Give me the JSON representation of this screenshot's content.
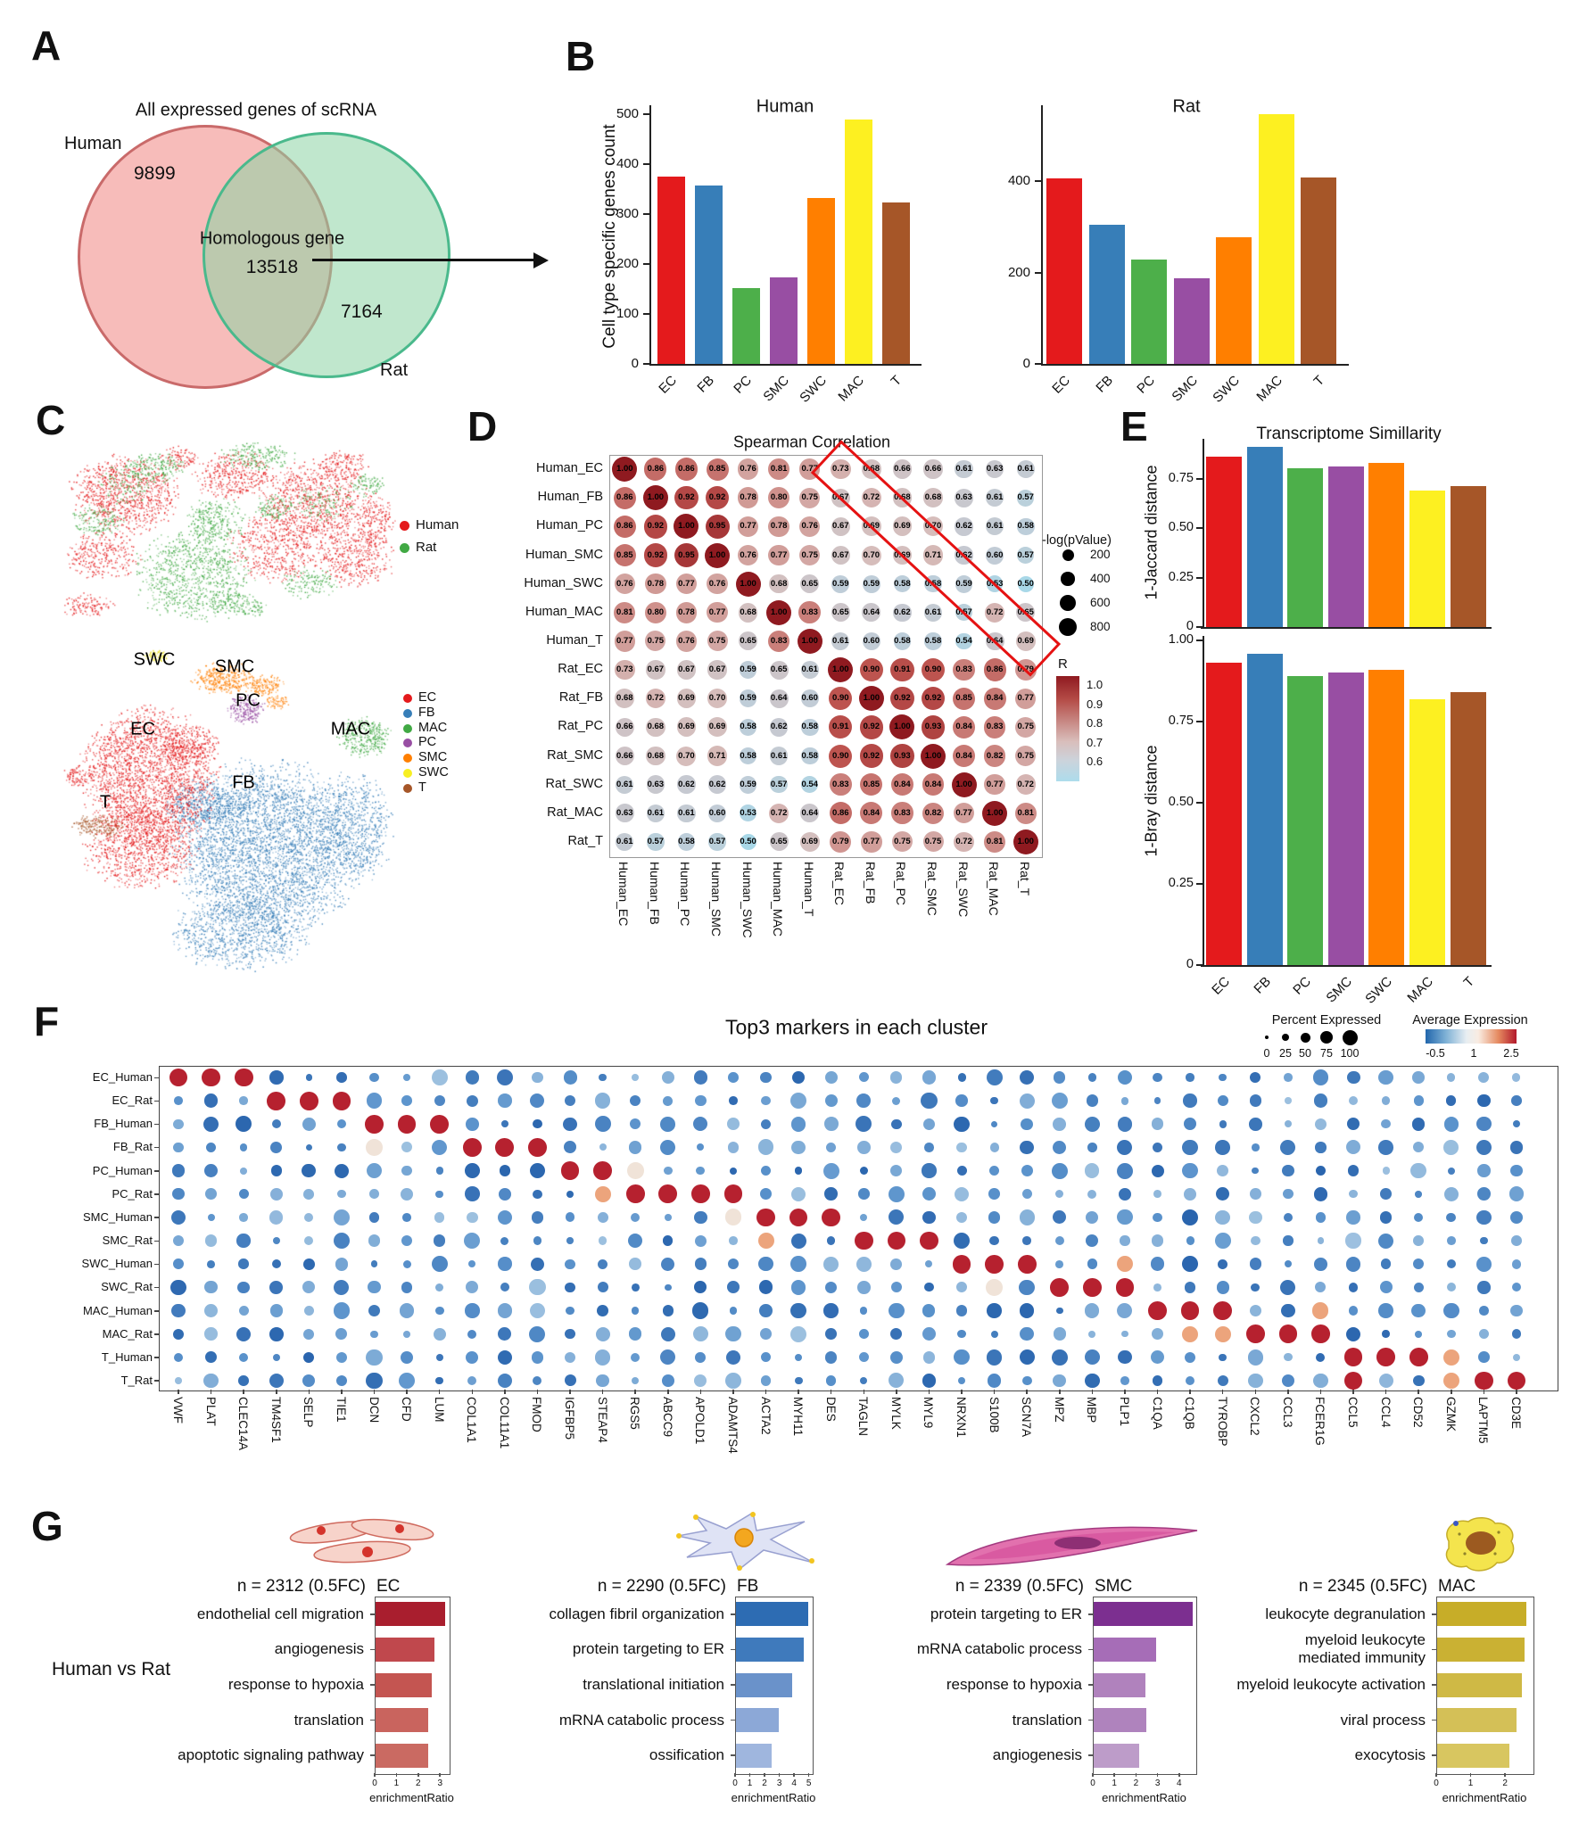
{
  "figure": {
    "panels": {
      "a": "A",
      "b": "B",
      "c": "C",
      "d": "D",
      "e": "E",
      "f": "F",
      "g": "G"
    }
  },
  "chart_data": {
    "venn": {
      "type": "venn",
      "title": "All expressed genes of scRNA",
      "sets": [
        {
          "label": "Human",
          "count": "9899"
        },
        {
          "label": "Rat",
          "count": "7164"
        }
      ],
      "overlap": {
        "label": "Homologous gene",
        "count": "13518"
      },
      "colors": {
        "human_fill": "rgba(242,144,140,0.60)",
        "rat_fill": "rgba(140,211,164,0.60)",
        "human_edge": "#c96a6a",
        "rat_edge": "#4ab98c"
      }
    },
    "genes_count": {
      "type": "bar",
      "ylabel": "Cell type specific genes count",
      "categories": [
        "EC",
        "FB",
        "PC",
        "SMC",
        "SWC",
        "MAC",
        "T"
      ],
      "bar_colors": [
        "#e41a1c",
        "#377eb8",
        "#4daf4a",
        "#984ea3",
        "#ff7f00",
        "#fdf021",
        "#a65628"
      ],
      "charts": [
        {
          "title": "Human",
          "values": [
            375,
            358,
            152,
            173,
            333,
            490,
            323
          ],
          "yticks": [
            0,
            100,
            200,
            300,
            400,
            500
          ],
          "ymax": 520
        },
        {
          "title": "Rat",
          "values": [
            405,
            305,
            228,
            188,
            278,
            546,
            408
          ],
          "yticks": [
            0,
            200,
            400
          ],
          "ymax": 575
        }
      ]
    },
    "tsne_species": {
      "type": "scatter",
      "legend": [
        {
          "label": "Human",
          "color": "#e41a1c"
        },
        {
          "label": "Rat",
          "color": "#41a944"
        }
      ]
    },
    "tsne_clusters": {
      "type": "scatter",
      "legend": [
        {
          "label": "EC",
          "color": "#e41a1c"
        },
        {
          "label": "FB",
          "color": "#377eb8"
        },
        {
          "label": "MAC",
          "color": "#41a944"
        },
        {
          "label": "PC",
          "color": "#984ea3"
        },
        {
          "label": "SMC",
          "color": "#ff7f00"
        },
        {
          "label": "SWC",
          "color": "#f7ef22"
        },
        {
          "label": "T",
          "color": "#a65628"
        }
      ],
      "cluster_labels": [
        {
          "text": "SWC",
          "x": 173,
          "y": 740
        },
        {
          "text": "SMC",
          "x": 263,
          "y": 748
        },
        {
          "text": "PC",
          "x": 278,
          "y": 786
        },
        {
          "text": "EC",
          "x": 160,
          "y": 818
        },
        {
          "text": "MAC",
          "x": 393,
          "y": 818
        },
        {
          "text": "FB",
          "x": 273,
          "y": 878
        },
        {
          "text": "T",
          "x": 118,
          "y": 900
        }
      ]
    },
    "spearman": {
      "type": "heatmap",
      "title": "Spearman Correlation",
      "labels": [
        "Human_EC",
        "Human_FB",
        "Human_PC",
        "Human_SMC",
        "Human_SWC",
        "Human_MAC",
        "Human_T",
        "Rat_EC",
        "Rat_FB",
        "Rat_PC",
        "Rat_SMC",
        "Rat_SWC",
        "Rat_MAC",
        "Rat_T"
      ],
      "matrix": [
        [
          1.0,
          0.86,
          0.86,
          0.85,
          0.76,
          0.81,
          0.77,
          0.73,
          0.68,
          0.66,
          0.66,
          0.61,
          0.63,
          0.61
        ],
        [
          0.86,
          1.0,
          0.92,
          0.92,
          0.78,
          0.8,
          0.75,
          0.67,
          0.72,
          0.68,
          0.68,
          0.63,
          0.61,
          0.57
        ],
        [
          0.86,
          0.92,
          1.0,
          0.95,
          0.77,
          0.78,
          0.76,
          0.67,
          0.69,
          0.69,
          0.7,
          0.62,
          0.61,
          0.58
        ],
        [
          0.85,
          0.92,
          0.95,
          1.0,
          0.76,
          0.77,
          0.75,
          0.67,
          0.7,
          0.69,
          0.71,
          0.62,
          0.6,
          0.57
        ],
        [
          0.76,
          0.78,
          0.77,
          0.76,
          1.0,
          0.68,
          0.65,
          0.59,
          0.59,
          0.58,
          0.58,
          0.59,
          0.53,
          0.5
        ],
        [
          0.81,
          0.8,
          0.78,
          0.77,
          0.68,
          1.0,
          0.83,
          0.65,
          0.64,
          0.62,
          0.61,
          0.57,
          0.72,
          0.65
        ],
        [
          0.77,
          0.75,
          0.76,
          0.75,
          0.65,
          0.83,
          1.0,
          0.61,
          0.6,
          0.58,
          0.58,
          0.54,
          0.64,
          0.69
        ],
        [
          0.73,
          0.67,
          0.67,
          0.67,
          0.59,
          0.65,
          0.61,
          1.0,
          0.9,
          0.91,
          0.9,
          0.83,
          0.86,
          0.79
        ],
        [
          0.68,
          0.72,
          0.69,
          0.7,
          0.59,
          0.64,
          0.6,
          0.9,
          1.0,
          0.92,
          0.92,
          0.85,
          0.84,
          0.77
        ],
        [
          0.66,
          0.68,
          0.69,
          0.69,
          0.58,
          0.62,
          0.58,
          0.91,
          0.92,
          1.0,
          0.93,
          0.84,
          0.83,
          0.75
        ],
        [
          0.66,
          0.68,
          0.7,
          0.71,
          0.58,
          0.61,
          0.58,
          0.9,
          0.92,
          0.93,
          1.0,
          0.84,
          0.82,
          0.75
        ],
        [
          0.61,
          0.63,
          0.62,
          0.62,
          0.59,
          0.57,
          0.54,
          0.83,
          0.85,
          0.84,
          0.84,
          1.0,
          0.77,
          0.72
        ],
        [
          0.63,
          0.61,
          0.61,
          0.6,
          0.53,
          0.72,
          0.64,
          0.86,
          0.84,
          0.83,
          0.82,
          0.77,
          1.0,
          0.81
        ],
        [
          0.61,
          0.57,
          0.58,
          0.57,
          0.5,
          0.65,
          0.69,
          0.79,
          0.77,
          0.75,
          0.75,
          0.72,
          0.81,
          1.0
        ]
      ],
      "size_legend": {
        "title": "-log(pValue)",
        "values": [
          200,
          400,
          600,
          800
        ]
      },
      "color_legend": {
        "title": "R",
        "ticks": [
          "1.0",
          "0.9",
          "0.8",
          "0.7",
          "0.6"
        ]
      }
    },
    "similarity": {
      "type": "bar",
      "title": "Transcriptome Simillarity",
      "categories": [
        "EC",
        "FB",
        "PC",
        "SMC",
        "SWC",
        "MAC",
        "T"
      ],
      "charts": [
        {
          "ylabel": "1-Jaccard distance",
          "values": [
            0.86,
            0.91,
            0.8,
            0.81,
            0.83,
            0.69,
            0.71
          ],
          "yticks": [
            "0",
            "0.25",
            "0.50",
            "0.75"
          ],
          "ymax": 0.97
        },
        {
          "ylabel": "1-Bray distance",
          "values": [
            0.93,
            0.96,
            0.89,
            0.9,
            0.91,
            0.82,
            0.84
          ],
          "yticks": [
            "0",
            "0.25",
            "0.50",
            "0.75",
            "1.00"
          ],
          "ymax": 1.01
        }
      ]
    },
    "dotplot": {
      "type": "dot",
      "title": "Top3 markers in each cluster",
      "genes": [
        "VWF",
        "PLAT",
        "CLEC14A",
        "TM4SF1",
        "SELP",
        "TIE1",
        "DCN",
        "CFD",
        "LUM",
        "COL1A1",
        "COL11A1",
        "FMOD",
        "IGFBP5",
        "STEAP4",
        "RGS5",
        "ABCC9",
        "APOLD1",
        "ADAMTS4",
        "ACTA2",
        "MYH11",
        "DES",
        "TAGLN",
        "MYLK",
        "MYL9",
        "NRXN1",
        "S100B",
        "SCN7A",
        "MPZ",
        "MBP",
        "PLP1",
        "C1QA",
        "C1QB",
        "TYROBP",
        "CXCL2",
        "CCL3",
        "FCER1G",
        "CCL5",
        "CCL4",
        "CD52",
        "GZMK",
        "LAPTM5",
        "CD3E"
      ],
      "rows": [
        {
          "label": "EC_Human",
          "hot": [
            0,
            1,
            2
          ],
          "warm": [],
          "mild": []
        },
        {
          "label": "EC_Rat",
          "hot": [
            3,
            4,
            5
          ],
          "warm": [],
          "mild": []
        },
        {
          "label": "FB_Human",
          "hot": [
            6,
            7,
            8
          ],
          "warm": [],
          "mild": []
        },
        {
          "label": "FB_Rat",
          "hot": [
            9,
            10,
            11
          ],
          "warm": [],
          "mild": [
            6
          ]
        },
        {
          "label": "PC_Human",
          "hot": [
            12,
            13
          ],
          "warm": [],
          "mild": [
            14
          ]
        },
        {
          "label": "PC_Rat",
          "hot": [
            14,
            15,
            16,
            17
          ],
          "warm": [
            13
          ],
          "mild": []
        },
        {
          "label": "SMC_Human",
          "hot": [
            18,
            19,
            20
          ],
          "warm": [],
          "mild": [
            17
          ]
        },
        {
          "label": "SMC_Rat",
          "hot": [
            21,
            22,
            23
          ],
          "warm": [
            18
          ],
          "mild": []
        },
        {
          "label": "SWC_Human",
          "hot": [
            24,
            25,
            26
          ],
          "warm": [
            29
          ],
          "mild": []
        },
        {
          "label": "SWC_Rat",
          "hot": [
            27,
            28,
            29
          ],
          "warm": [],
          "mild": [
            25
          ]
        },
        {
          "label": "MAC_Human",
          "hot": [
            30,
            31,
            32
          ],
          "warm": [
            35
          ],
          "mild": []
        },
        {
          "label": "MAC_Rat",
          "hot": [
            33,
            34,
            35
          ],
          "warm": [
            31,
            32
          ],
          "mild": []
        },
        {
          "label": "T_Human",
          "hot": [
            36,
            37,
            38
          ],
          "warm": [
            39
          ],
          "mild": []
        },
        {
          "label": "T_Rat",
          "hot": [
            36,
            40,
            41
          ],
          "warm": [
            39
          ],
          "mild": []
        }
      ],
      "percent_legend": {
        "title": "Percent Expressed",
        "ticks": [
          "0",
          "25",
          "50",
          "75",
          "100"
        ]
      },
      "expression_legend": {
        "title": "Average Expression",
        "ticks": [
          "-0.5",
          "1",
          "2.5"
        ]
      }
    },
    "go": {
      "row_label": "Human vs Rat",
      "xlabel": "enrichmentRatio",
      "panels": [
        {
          "cell": "EC",
          "n_label": "n = 2312 (0.5FC)",
          "terms": [
            "endothelial cell migration",
            "angiogenesis",
            "response to hypoxia",
            "translation",
            "apoptotic signaling pathway"
          ],
          "values": [
            3.2,
            2.7,
            2.6,
            2.4,
            2.4
          ],
          "xticks": [
            0,
            1,
            2,
            3
          ],
          "xmax": 3.4,
          "colors": [
            "#a91e2e",
            "#c0484d",
            "#c45551",
            "#c9645e",
            "#ca6a62"
          ]
        },
        {
          "cell": "FB",
          "n_label": "n = 2290 (0.5FC)",
          "terms": [
            "collagen fibril organization",
            "protein targeting to ER",
            "translational initiation",
            "mRNA catabolic process",
            "ossification"
          ],
          "values": [
            4.9,
            4.6,
            3.8,
            2.9,
            2.4
          ],
          "xticks": [
            0,
            1,
            2,
            3,
            4,
            5
          ],
          "xmax": 5.2,
          "colors": [
            "#2d6cb3",
            "#3f7abc",
            "#6a92ca",
            "#8ca8d7",
            "#9fb6de"
          ]
        },
        {
          "cell": "SMC",
          "n_label": "n = 2339 (0.5FC)",
          "terms": [
            "protein targeting to ER",
            "mRNA catabolic process",
            "response to hypoxia",
            "translation",
            "angiogenesis"
          ],
          "values": [
            4.6,
            2.9,
            2.4,
            2.45,
            2.1
          ],
          "xticks": [
            0,
            1,
            2,
            3,
            4
          ],
          "xmax": 4.75,
          "colors": [
            "#7c2f90",
            "#a66db7",
            "#b082bd",
            "#af83bd",
            "#bd9cc9"
          ]
        },
        {
          "cell": "MAC",
          "n_label": "n = 2345 (0.5FC)",
          "terms": [
            "leukocyte degranulation",
            "myeloid leukocyte\nmediated immunity",
            "myeloid leukocyte activation",
            "viral process",
            "exocytosis"
          ],
          "values": [
            2.6,
            2.55,
            2.45,
            2.3,
            2.1
          ],
          "xticks": [
            0,
            1,
            2
          ],
          "xmax": 2.8,
          "colors": [
            "#c7ad28",
            "#cab133",
            "#cfb945",
            "#d4c057",
            "#d8c660"
          ]
        }
      ]
    }
  }
}
